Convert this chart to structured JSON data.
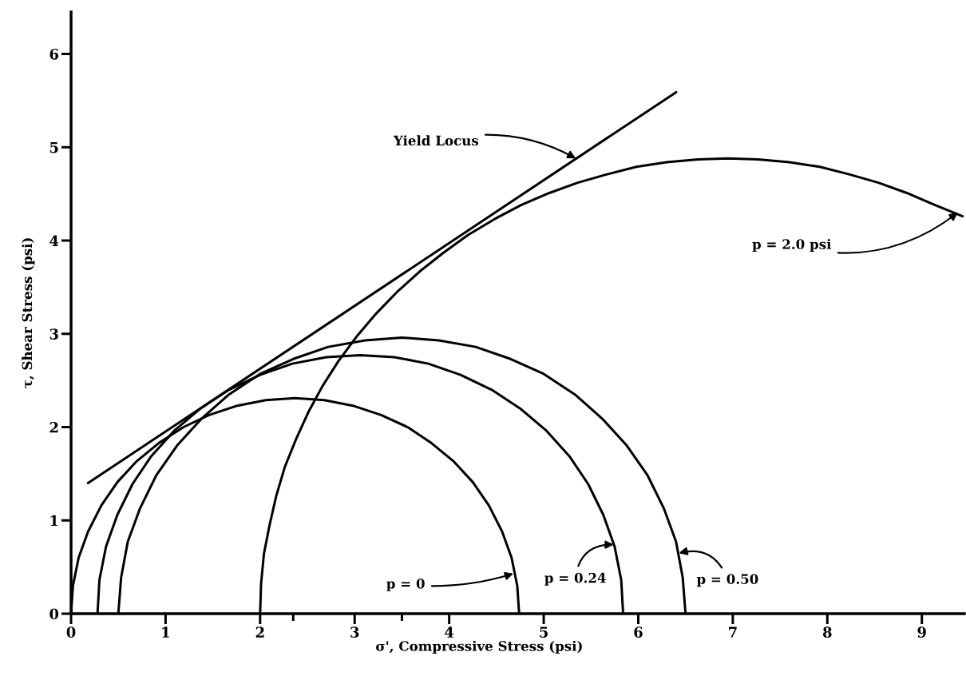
{
  "chart_data": {
    "type": "line",
    "xlabel": "σ', Compressive Stress (psi)",
    "ylabel": "τ, Shear Stress (psi)",
    "xlim": [
      0,
      9.45
    ],
    "ylim": [
      0,
      6.45
    ],
    "xticks": [
      0,
      1,
      2,
      {
        "value": 2.35,
        "label": null
      },
      3,
      {
        "value": 3.5,
        "label": null
      },
      4,
      5,
      6,
      7,
      8,
      9
    ],
    "yticks": [
      0,
      1,
      2,
      3,
      4,
      5,
      6
    ],
    "series": [
      {
        "color": "#000000",
        "x": [
          0.18,
          6.4
        ],
        "values": [
          1.4,
          5.59
        ]
      },
      {
        "color": "#000000",
        "x": [
          0,
          0.02,
          0.08,
          0.18,
          0.32,
          0.49,
          0.69,
          0.93,
          1.19,
          1.46,
          1.76,
          2.06,
          2.37,
          2.68,
          2.98,
          3.28,
          3.56,
          3.81,
          4.05,
          4.25,
          4.42,
          4.56,
          4.66,
          4.72,
          4.74
        ],
        "values": [
          0,
          0.3,
          0.6,
          0.88,
          1.16,
          1.41,
          1.63,
          1.83,
          2.0,
          2.13,
          2.23,
          2.29,
          2.31,
          2.29,
          2.23,
          2.13,
          2.0,
          1.83,
          1.63,
          1.41,
          1.16,
          0.88,
          0.6,
          0.3,
          0
        ]
      },
      {
        "color": "#000000",
        "x": [
          0.28,
          0.3,
          0.37,
          0.49,
          0.65,
          0.85,
          1.09,
          1.37,
          1.67,
          2.0,
          2.34,
          2.7,
          3.06,
          3.42,
          3.78,
          4.12,
          4.45,
          4.75,
          5.03,
          5.27,
          5.47,
          5.63,
          5.75,
          5.82,
          5.84
        ],
        "values": [
          0,
          0.36,
          0.72,
          1.06,
          1.39,
          1.69,
          1.96,
          2.2,
          2.4,
          2.56,
          2.68,
          2.75,
          2.77,
          2.75,
          2.68,
          2.56,
          2.4,
          2.2,
          1.96,
          1.69,
          1.39,
          1.06,
          0.72,
          0.36,
          0
        ]
      },
      {
        "color": "#000000",
        "x": [
          0.5,
          0.53,
          0.6,
          0.73,
          0.9,
          1.12,
          1.38,
          1.67,
          2.0,
          2.35,
          2.72,
          3.11,
          3.5,
          3.89,
          4.28,
          4.65,
          5.0,
          5.33,
          5.62,
          5.88,
          6.1,
          6.27,
          6.4,
          6.47,
          6.5
        ],
        "values": [
          0,
          0.39,
          0.77,
          1.13,
          1.48,
          1.8,
          2.09,
          2.35,
          2.57,
          2.73,
          2.86,
          2.93,
          2.96,
          2.93,
          2.86,
          2.73,
          2.57,
          2.35,
          2.09,
          1.8,
          1.48,
          1.13,
          0.77,
          0.39,
          0
        ]
      },
      {
        "color": "#000000",
        "x": [
          2.0,
          2.01,
          2.04,
          2.1,
          2.17,
          2.26,
          2.38,
          2.51,
          2.66,
          2.83,
          3.02,
          3.23,
          3.45,
          3.69,
          3.94,
          4.2,
          4.48,
          4.76,
          5.06,
          5.36,
          5.67,
          5.98,
          6.3,
          6.63,
          6.95,
          7.27,
          7.6,
          7.92,
          8.23,
          8.54,
          8.84,
          9.14,
          9.43
        ],
        "values": [
          0,
          0.32,
          0.64,
          0.95,
          1.26,
          1.57,
          1.87,
          2.16,
          2.44,
          2.71,
          2.97,
          3.22,
          3.45,
          3.67,
          3.87,
          4.06,
          4.23,
          4.38,
          4.51,
          4.62,
          4.71,
          4.79,
          4.84,
          4.87,
          4.88,
          4.87,
          4.84,
          4.79,
          4.71,
          4.62,
          4.51,
          4.38,
          4.26
        ]
      }
    ],
    "annotations": [
      {
        "text": "Yield Locus",
        "x": 5.34,
        "y": 4.88
      },
      {
        "text": "p = 2.0 psi",
        "x": 9.38,
        "y": 4.3
      },
      {
        "text": "p = 0",
        "x": 4.68,
        "y": 0.43
      },
      {
        "text": "p = 0.24",
        "x": 5.74,
        "y": 0.74
      },
      {
        "text": "p = 0.50",
        "x": 6.43,
        "y": 0.65
      }
    ]
  }
}
